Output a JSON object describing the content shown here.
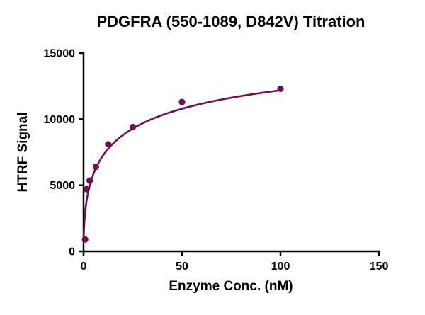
{
  "chart_data": {
    "type": "scatter",
    "title": "PDGFRA (550-1089, D842V) Titration",
    "xlabel": "Enzyme Conc. (nM)",
    "ylabel": "HTRF Signal",
    "xlim": [
      0,
      150
    ],
    "ylim": [
      0,
      15000
    ],
    "x_ticks": [
      0,
      50,
      100,
      150
    ],
    "y_ticks": [
      0,
      5000,
      10000,
      15000
    ],
    "grid": false,
    "legend": false,
    "series": [
      {
        "name": "PDGFRA (550-1089, D842V)",
        "x": [
          0.78,
          1.56,
          3.125,
          6.25,
          12.5,
          25,
          50,
          100
        ],
        "y": [
          900,
          4700,
          5350,
          6400,
          8100,
          9400,
          11300,
          12300
        ],
        "color": "#6A1350",
        "marker": "circle"
      }
    ],
    "fit_curve": {
      "model": "hill",
      "vmax": 17700,
      "k_half": 20.5,
      "hill": 0.5,
      "x_start": 0.05,
      "x_end": 100,
      "color": "#6A1350"
    }
  },
  "colors": {
    "accent": "#6A1350",
    "axis": "#000000",
    "background": "#FFFFFF"
  }
}
